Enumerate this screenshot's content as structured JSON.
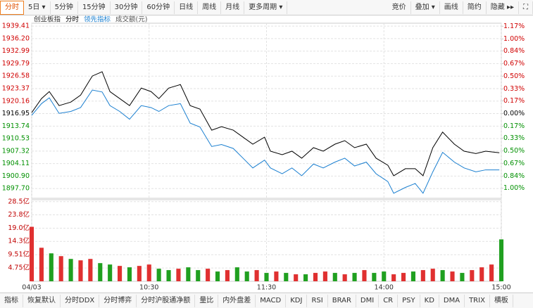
{
  "toolbar": {
    "left": [
      "分时",
      "5日 ▾",
      "5分钟",
      "15分钟",
      "30分钟",
      "60分钟",
      "日线",
      "周线",
      "月线",
      "更多周期 ▾"
    ],
    "right": [
      "竞价",
      "叠加 ▾",
      "画线",
      "简约",
      "隐藏 ▸▸",
      "⛶"
    ]
  },
  "bottom_tabs": [
    "指标",
    "恢复默认",
    "分时DDX",
    "分时博弈",
    "分时沪股通净额",
    "量比",
    "内外盘差",
    "MACD",
    "KDJ",
    "RSI",
    "BRAR",
    "DMI",
    "CR",
    "PSY",
    "KD",
    "DMA",
    "TRIX",
    "横板"
  ],
  "chart_data": [
    {
      "type": "line",
      "title": "创业板指",
      "x": [
        0,
        5,
        9,
        14,
        20,
        25,
        31,
        36,
        40,
        45,
        50,
        56,
        61,
        65,
        70,
        76,
        81,
        86,
        92,
        97,
        103,
        108,
        113,
        119,
        122,
        128,
        133,
        138,
        144,
        149,
        155,
        160,
        165,
        171,
        176,
        182,
        185,
        191,
        196,
        200,
        205,
        210,
        216,
        221,
        227,
        232,
        239
      ],
      "series": [
        {
          "name": "分时",
          "color": "#000000",
          "values": [
            1917.2,
            1920.8,
            1922.6,
            1919.0,
            1919.9,
            1921.7,
            1926.6,
            1927.7,
            1922.6,
            1920.8,
            1919.0,
            1923.5,
            1922.6,
            1920.8,
            1923.5,
            1924.4,
            1919.0,
            1918.1,
            1912.7,
            1913.6,
            1912.7,
            1910.9,
            1909.1,
            1910.9,
            1907.3,
            1906.4,
            1907.3,
            1905.5,
            1908.2,
            1907.3,
            1909.1,
            1910.0,
            1908.2,
            1909.1,
            1905.5,
            1903.7,
            1901.0,
            1902.8,
            1902.8,
            1901.0,
            1908.2,
            1912.2,
            1909.1,
            1907.3,
            1906.7,
            1907.3,
            1906.9
          ]
        },
        {
          "name": "领先指标",
          "color": "#1a7fd0",
          "values": [
            1916.5,
            1919.5,
            1921.0,
            1917.0,
            1917.5,
            1918.5,
            1923.0,
            1922.5,
            1919.0,
            1917.5,
            1915.5,
            1919.0,
            1918.5,
            1917.5,
            1919.0,
            1919.5,
            1914.5,
            1913.5,
            1908.5,
            1909.0,
            1908.0,
            1905.5,
            1903.0,
            1905.0,
            1903.0,
            1901.5,
            1903.0,
            1901.0,
            1904.0,
            1903.0,
            1904.5,
            1905.5,
            1903.5,
            1904.5,
            1901.5,
            1899.5,
            1896.5,
            1898.0,
            1899.0,
            1896.5,
            1902.0,
            1907.0,
            1904.5,
            1903.0,
            1902.0,
            1902.5,
            1902.5
          ]
        }
      ],
      "xlim": [
        0,
        240
      ],
      "ylim": [
        1895.2,
        1940.7
      ],
      "yticks": [
        1939.41,
        {
          "value": 1936.2,
          "label": "1936.20"
        },
        1932.99,
        1929.79,
        1926.58,
        1923.37,
        1920.16,
        1916.95,
        1913.74,
        1910.53,
        1907.32,
        1904.11,
        {
          "value": 1900.9,
          "label": "1900.90"
        },
        {
          "value": 1897.7,
          "label": "1897.70"
        }
      ],
      "y2lim": [
        -1.135,
        1.239
      ],
      "y2ticks": [
        {
          "value": 1.17,
          "label": "1.17%"
        },
        {
          "value": 1.0,
          "label": "1.00%"
        },
        {
          "value": 0.84,
          "label": "0.84%"
        },
        {
          "value": 0.67,
          "label": "0.67%"
        },
        {
          "value": 0.5,
          "label": "0.50%"
        },
        {
          "value": 0.33,
          "label": "0.33%"
        },
        {
          "value": 0.17,
          "label": "0.17%"
        },
        {
          "value": 0,
          "label": "0.00%"
        },
        {
          "value": -0.17,
          "label": "0.17%"
        },
        {
          "value": -0.33,
          "label": "0.33%"
        },
        {
          "value": -0.5,
          "label": "0.50%"
        },
        {
          "value": -0.67,
          "label": "0.67%"
        },
        {
          "value": -0.84,
          "label": "0.84%"
        },
        {
          "value": -1.0,
          "label": "1.00%"
        }
      ],
      "grid": true
    },
    {
      "type": "bar",
      "title": "成交额(元)",
      "x": [
        0,
        5,
        10,
        15,
        20,
        25,
        30,
        35,
        40,
        45,
        50,
        55,
        60,
        65,
        70,
        75,
        80,
        85,
        90,
        95,
        100,
        105,
        110,
        115,
        120,
        125,
        130,
        135,
        140,
        145,
        150,
        155,
        160,
        165,
        170,
        175,
        180,
        185,
        190,
        195,
        200,
        205,
        210,
        215,
        220,
        225,
        230,
        235,
        240
      ],
      "values": [
        19.5,
        12,
        10,
        9,
        8,
        7.5,
        8,
        6.5,
        6,
        5.5,
        5,
        5.5,
        6,
        4.5,
        4,
        4.5,
        5,
        4,
        4.5,
        3.5,
        4,
        5,
        3.5,
        4,
        3,
        3.5,
        3,
        2.5,
        2.5,
        3,
        3.5,
        3,
        2.5,
        3,
        4,
        3,
        3.5,
        2.5,
        3,
        3.5,
        4,
        4.5,
        4,
        3.5,
        3,
        4,
        5,
        6,
        15
      ],
      "colors": [
        "#e03030",
        "#e03030",
        "#20a020",
        "#e03030",
        "#20a020",
        "#e03030",
        "#e03030",
        "#20a020",
        "#20a020",
        "#e03030",
        "#20a020",
        "#e03030",
        "#e03030",
        "#20a020",
        "#20a020",
        "#e03030",
        "#20a020",
        "#20a020",
        "#e03030",
        "#20a020",
        "#e03030",
        "#20a020",
        "#20a020",
        "#e03030",
        "#20a020",
        "#e03030",
        "#20a020",
        "#e03030",
        "#20a020",
        "#e03030",
        "#e03030",
        "#20a020",
        "#e03030",
        "#20a020",
        "#e03030",
        "#20a020",
        "#20a020",
        "#e03030",
        "#e03030",
        "#20a020",
        "#e03030",
        "#e03030",
        "#20a020",
        "#e03030",
        "#20a020",
        "#e03030",
        "#e03030",
        "#e03030",
        "#20a020"
      ],
      "xlim": [
        0,
        240
      ],
      "ylim": [
        0,
        29.2
      ],
      "yticks": [
        {
          "value": 28.5,
          "label": "28.5亿"
        },
        {
          "value": 23.8,
          "label": "23.8亿"
        },
        {
          "value": 19.0,
          "label": "19.0亿"
        },
        {
          "value": 14.3,
          "label": "14.3亿"
        },
        {
          "value": 9.51,
          "label": "9.51亿"
        },
        {
          "value": 4.75,
          "label": "4.75亿"
        }
      ],
      "xticks": [
        {
          "value": 0,
          "label": "04/03"
        },
        {
          "value": 60,
          "label": "10:30"
        },
        {
          "value": 120,
          "label": "11:30"
        },
        {
          "value": 180,
          "label": "14:00"
        },
        {
          "value": 240,
          "label": "15:00"
        }
      ],
      "grid": true
    }
  ]
}
